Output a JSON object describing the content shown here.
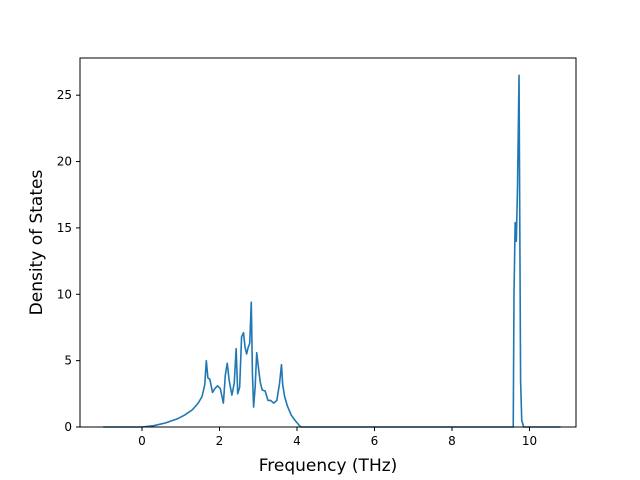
{
  "chart_data": {
    "type": "line",
    "title": "",
    "xlabel": "Frequency (THz)",
    "ylabel": "Density of States",
    "xlim": [
      -1.6,
      11.2
    ],
    "ylim": [
      0,
      27.8
    ],
    "xticks": [
      0,
      2,
      4,
      6,
      8,
      10
    ],
    "yticks": [
      0,
      5,
      10,
      15,
      20,
      25
    ],
    "grid": false,
    "legend": "none",
    "series": [
      {
        "color": "#1f77b4",
        "x": [
          -1.0,
          0.0,
          0.3,
          0.6,
          0.9,
          1.1,
          1.3,
          1.45,
          1.55,
          1.62,
          1.66,
          1.7,
          1.75,
          1.82,
          1.88,
          1.95,
          2.02,
          2.1,
          2.15,
          2.2,
          2.25,
          2.32,
          2.38,
          2.43,
          2.47,
          2.52,
          2.57,
          2.62,
          2.66,
          2.7,
          2.74,
          2.78,
          2.82,
          2.85,
          2.88,
          2.92,
          2.96,
          3.0,
          3.05,
          3.1,
          3.18,
          3.25,
          3.32,
          3.4,
          3.48,
          3.55,
          3.6,
          3.63,
          3.68,
          3.75,
          3.85,
          3.95,
          4.05,
          4.1,
          4.2,
          6.0,
          8.0,
          9.58,
          9.6,
          9.63,
          9.66,
          9.69,
          9.73,
          9.77,
          9.8,
          9.85,
          10.8
        ],
        "y": [
          0.0,
          0.0,
          0.1,
          0.3,
          0.6,
          0.9,
          1.3,
          1.8,
          2.3,
          3.2,
          5.0,
          3.7,
          3.6,
          2.6,
          2.9,
          3.1,
          2.9,
          1.8,
          3.9,
          4.8,
          3.5,
          2.4,
          3.3,
          5.9,
          2.5,
          3.0,
          6.8,
          7.1,
          6.0,
          5.5,
          6.0,
          6.3,
          9.4,
          4.0,
          1.5,
          3.0,
          5.6,
          4.6,
          3.4,
          2.8,
          2.7,
          2.0,
          2.0,
          1.8,
          2.0,
          3.3,
          4.7,
          3.2,
          2.3,
          1.6,
          0.9,
          0.5,
          0.15,
          0.0,
          0.0,
          0.0,
          0.0,
          0.0,
          10.0,
          15.4,
          14.0,
          18.0,
          26.5,
          3.5,
          0.5,
          0.0,
          0.0
        ]
      }
    ]
  }
}
